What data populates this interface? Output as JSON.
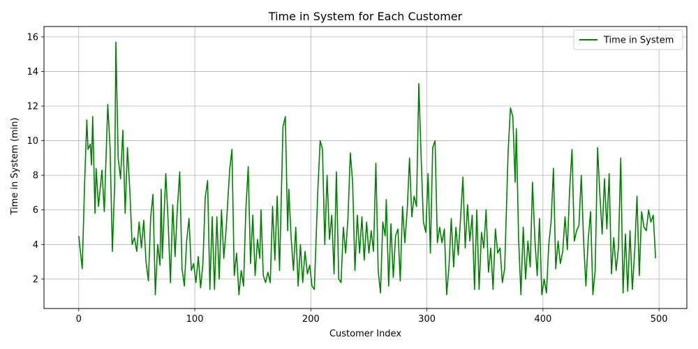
{
  "chart_data": {
    "type": "line",
    "title": "Time in System for Each Customer",
    "xlabel": "Customer Index",
    "ylabel": "Time in System (min)",
    "xlim": [
      -29.95,
      523.95
    ],
    "ylim": [
      0.3,
      16.6
    ],
    "xticks": [
      0,
      100,
      200,
      300,
      400,
      500
    ],
    "yticks": [
      2,
      4,
      6,
      8,
      10,
      12,
      14,
      16
    ],
    "grid": true,
    "legend_position": "top-right",
    "series": [
      {
        "name": "Time in System",
        "color": "#008000",
        "points": [
          [
            0,
            4.5
          ],
          [
            3,
            2.6
          ],
          [
            5,
            7.4
          ],
          [
            7,
            11.2
          ],
          [
            8,
            9.5
          ],
          [
            10,
            9.8
          ],
          [
            11,
            8.6
          ],
          [
            12,
            11.4
          ],
          [
            14,
            5.8
          ],
          [
            15,
            8.4
          ],
          [
            17,
            6.2
          ],
          [
            20,
            8.3
          ],
          [
            22,
            5.9
          ],
          [
            25,
            12.1
          ],
          [
            27,
            9.6
          ],
          [
            29,
            3.6
          ],
          [
            31,
            7.5
          ],
          [
            32,
            15.7
          ],
          [
            34,
            9.0
          ],
          [
            36,
            7.8
          ],
          [
            38,
            10.6
          ],
          [
            40,
            5.8
          ],
          [
            42,
            9.6
          ],
          [
            44,
            7.1
          ],
          [
            46,
            4.0
          ],
          [
            48,
            4.4
          ],
          [
            50,
            3.6
          ],
          [
            52,
            5.3
          ],
          [
            54,
            3.8
          ],
          [
            56,
            5.4
          ],
          [
            58,
            3.0
          ],
          [
            60,
            1.9
          ],
          [
            62,
            5.6
          ],
          [
            64,
            6.9
          ],
          [
            66,
            1.1
          ],
          [
            68,
            4.0
          ],
          [
            70,
            2.8
          ],
          [
            71,
            7.2
          ],
          [
            72,
            3.2
          ],
          [
            75,
            8.1
          ],
          [
            77,
            5.4
          ],
          [
            79,
            1.8
          ],
          [
            81,
            6.3
          ],
          [
            83,
            3.3
          ],
          [
            85,
            6.1
          ],
          [
            87,
            8.2
          ],
          [
            89,
            2.6
          ],
          [
            91,
            1.6
          ],
          [
            93,
            4.2
          ],
          [
            95,
            5.5
          ],
          [
            97,
            2.5
          ],
          [
            99,
            2.9
          ],
          [
            101,
            1.8
          ],
          [
            103,
            3.3
          ],
          [
            105,
            1.5
          ],
          [
            107,
            2.9
          ],
          [
            109,
            6.7
          ],
          [
            111,
            7.7
          ],
          [
            113,
            1.4
          ],
          [
            115,
            5.6
          ],
          [
            117,
            1.4
          ],
          [
            119,
            5.6
          ],
          [
            121,
            2.0
          ],
          [
            123,
            6.0
          ],
          [
            125,
            3.2
          ],
          [
            127,
            4.9
          ],
          [
            130,
            8.3
          ],
          [
            132,
            9.5
          ],
          [
            134,
            2.2
          ],
          [
            136,
            3.5
          ],
          [
            138,
            1.1
          ],
          [
            140,
            2.5
          ],
          [
            142,
            1.6
          ],
          [
            144,
            6.0
          ],
          [
            146,
            8.5
          ],
          [
            148,
            2.9
          ],
          [
            150,
            5.7
          ],
          [
            152,
            2.2
          ],
          [
            154,
            4.3
          ],
          [
            156,
            3.2
          ],
          [
            157,
            6.0
          ],
          [
            159,
            2.2
          ],
          [
            161,
            1.8
          ],
          [
            163,
            2.4
          ],
          [
            165,
            1.8
          ],
          [
            167,
            6.2
          ],
          [
            169,
            3.1
          ],
          [
            171,
            6.8
          ],
          [
            173,
            2.5
          ],
          [
            176,
            10.8
          ],
          [
            178,
            11.4
          ],
          [
            180,
            4.8
          ],
          [
            181,
            7.2
          ],
          [
            183,
            4.4
          ],
          [
            185,
            2.5
          ],
          [
            187,
            5.0
          ],
          [
            189,
            1.6
          ],
          [
            191,
            4.0
          ],
          [
            193,
            1.8
          ],
          [
            195,
            3.6
          ],
          [
            197,
            2.3
          ],
          [
            199,
            2.8
          ],
          [
            201,
            1.6
          ],
          [
            203,
            1.4
          ],
          [
            206,
            7.1
          ],
          [
            208,
            10.0
          ],
          [
            210,
            9.5
          ],
          [
            212,
            4.0
          ],
          [
            214,
            8.0
          ],
          [
            216,
            4.3
          ],
          [
            218,
            5.7
          ],
          [
            220,
            2.3
          ],
          [
            222,
            8.2
          ],
          [
            224,
            2.0
          ],
          [
            226,
            1.8
          ],
          [
            228,
            5.0
          ],
          [
            230,
            3.5
          ],
          [
            232,
            5.6
          ],
          [
            234,
            9.3
          ],
          [
            236,
            7.6
          ],
          [
            238,
            2.5
          ],
          [
            240,
            5.7
          ],
          [
            242,
            3.5
          ],
          [
            244,
            5.6
          ],
          [
            246,
            3.1
          ],
          [
            248,
            5.3
          ],
          [
            250,
            3.5
          ],
          [
            252,
            4.8
          ],
          [
            254,
            3.6
          ],
          [
            256,
            8.7
          ],
          [
            258,
            2.5
          ],
          [
            260,
            1.2
          ],
          [
            262,
            5.3
          ],
          [
            264,
            4.5
          ],
          [
            265,
            6.6
          ],
          [
            267,
            1.6
          ],
          [
            269,
            5.2
          ],
          [
            271,
            2.1
          ],
          [
            273,
            4.5
          ],
          [
            275,
            4.9
          ],
          [
            277,
            1.9
          ],
          [
            279,
            6.2
          ],
          [
            281,
            4.1
          ],
          [
            283,
            6.0
          ],
          [
            285,
            9.0
          ],
          [
            287,
            5.6
          ],
          [
            289,
            6.8
          ],
          [
            291,
            6.2
          ],
          [
            293,
            13.3
          ],
          [
            295,
            9.1
          ],
          [
            297,
            5.3
          ],
          [
            299,
            4.7
          ],
          [
            301,
            8.1
          ],
          [
            303,
            3.5
          ],
          [
            305,
            9.6
          ],
          [
            307,
            10.0
          ],
          [
            309,
            4.1
          ],
          [
            311,
            5.0
          ],
          [
            313,
            4.1
          ],
          [
            315,
            4.9
          ],
          [
            317,
            1.1
          ],
          [
            319,
            2.7
          ],
          [
            321,
            5.5
          ],
          [
            323,
            2.7
          ],
          [
            325,
            5.0
          ],
          [
            327,
            3.4
          ],
          [
            329,
            5.5
          ],
          [
            331,
            7.9
          ],
          [
            333,
            3.8
          ],
          [
            335,
            6.3
          ],
          [
            337,
            4.2
          ],
          [
            339,
            5.7
          ],
          [
            341,
            1.4
          ],
          [
            343,
            6.0
          ],
          [
            345,
            1.4
          ],
          [
            347,
            4.7
          ],
          [
            349,
            3.8
          ],
          [
            351,
            6.0
          ],
          [
            353,
            2.4
          ],
          [
            355,
            3.8
          ],
          [
            357,
            1.4
          ],
          [
            359,
            4.9
          ],
          [
            361,
            3.5
          ],
          [
            363,
            3.8
          ],
          [
            365,
            1.8
          ],
          [
            367,
            2.6
          ],
          [
            370,
            9.4
          ],
          [
            372,
            11.9
          ],
          [
            374,
            11.4
          ],
          [
            376,
            7.6
          ],
          [
            377,
            10.7
          ],
          [
            379,
            4.3
          ],
          [
            381,
            1.1
          ],
          [
            383,
            5.0
          ],
          [
            385,
            2.0
          ],
          [
            387,
            4.2
          ],
          [
            389,
            2.7
          ],
          [
            391,
            7.6
          ],
          [
            393,
            4.3
          ],
          [
            395,
            2.2
          ],
          [
            397,
            5.5
          ],
          [
            399,
            1.1
          ],
          [
            401,
            2.0
          ],
          [
            403,
            1.2
          ],
          [
            405,
            4.0
          ],
          [
            407,
            5.3
          ],
          [
            409,
            8.4
          ],
          [
            411,
            2.6
          ],
          [
            413,
            4.2
          ],
          [
            415,
            2.9
          ],
          [
            417,
            3.6
          ],
          [
            419,
            5.6
          ],
          [
            421,
            3.7
          ],
          [
            423,
            7.2
          ],
          [
            425,
            9.5
          ],
          [
            427,
            4.2
          ],
          [
            429,
            4.8
          ],
          [
            431,
            5.1
          ],
          [
            433,
            8.0
          ],
          [
            435,
            4.2
          ],
          [
            437,
            1.6
          ],
          [
            439,
            4.3
          ],
          [
            441,
            5.9
          ],
          [
            443,
            1.1
          ],
          [
            445,
            2.5
          ],
          [
            447,
            9.6
          ],
          [
            449,
            6.9
          ],
          [
            451,
            4.6
          ],
          [
            453,
            7.8
          ],
          [
            455,
            4.9
          ],
          [
            457,
            8.1
          ],
          [
            459,
            2.3
          ],
          [
            461,
            4.4
          ],
          [
            463,
            2.5
          ],
          [
            465,
            3.8
          ],
          [
            467,
            9.0
          ],
          [
            469,
            1.2
          ],
          [
            471,
            4.6
          ],
          [
            473,
            1.3
          ],
          [
            475,
            4.8
          ],
          [
            477,
            1.4
          ],
          [
            479,
            3.6
          ],
          [
            481,
            6.8
          ],
          [
            483,
            2.2
          ],
          [
            485,
            5.9
          ],
          [
            487,
            5.0
          ],
          [
            489,
            4.8
          ],
          [
            491,
            6.0
          ],
          [
            493,
            5.3
          ],
          [
            495,
            5.7
          ],
          [
            497,
            3.2
          ]
        ]
      }
    ]
  }
}
